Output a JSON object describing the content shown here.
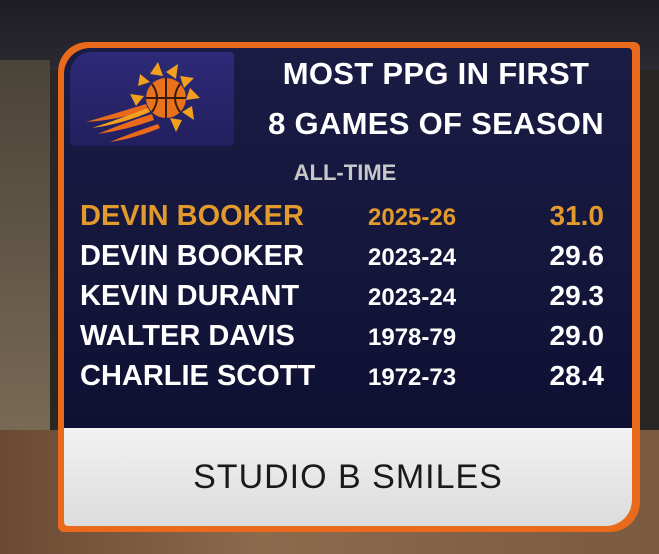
{
  "header": {
    "title_line1": "MOST PPG IN FIRST",
    "title_line2": "8 GAMES OF SEASON",
    "subtitle": "ALL-TIME"
  },
  "rows": [
    {
      "player": "DEVIN BOOKER",
      "season": "2025-26",
      "ppg": "31.0",
      "highlighted": true
    },
    {
      "player": "DEVIN BOOKER",
      "season": "2023-24",
      "ppg": "29.6",
      "highlighted": false
    },
    {
      "player": "KEVIN DURANT",
      "season": "2023-24",
      "ppg": "29.3",
      "highlighted": false
    },
    {
      "player": "WALTER DAVIS",
      "season": "1978-79",
      "ppg": "29.0",
      "highlighted": false
    },
    {
      "player": "CHARLIE SCOTT",
      "season": "1972-73",
      "ppg": "28.4",
      "highlighted": false
    }
  ],
  "footer": {
    "brand": "STUDIO B SMILES"
  },
  "colors": {
    "panel": "#1b1c45",
    "accent_orange": "#e86a1a",
    "highlight": "#e29a2c",
    "logo_purple": "#2e2a78"
  },
  "icons": {
    "team_logo": "suns-basketball-logo-icon"
  }
}
